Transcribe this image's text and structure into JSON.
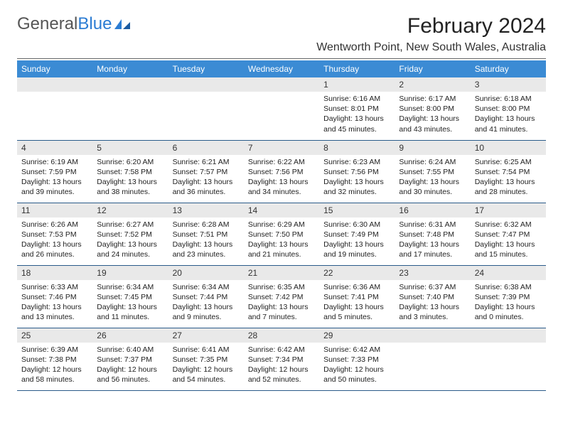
{
  "brand": {
    "part1": "General",
    "part2": "Blue"
  },
  "title": "February 2024",
  "location": "Wentworth Point, New South Wales, Australia",
  "colors": {
    "header_bg": "#3b8bd4",
    "header_text": "#ffffff",
    "daynum_bg": "#e9e9e9",
    "row_border": "#2a5b8a",
    "brand_blue": "#2b7cd3"
  },
  "days_of_week": [
    "Sunday",
    "Monday",
    "Tuesday",
    "Wednesday",
    "Thursday",
    "Friday",
    "Saturday"
  ],
  "weeks": [
    [
      {
        "blank": true
      },
      {
        "blank": true
      },
      {
        "blank": true
      },
      {
        "blank": true
      },
      {
        "n": "1",
        "sr": "Sunrise: 6:16 AM",
        "ss": "Sunset: 8:01 PM",
        "dl": "Daylight: 13 hours and 45 minutes."
      },
      {
        "n": "2",
        "sr": "Sunrise: 6:17 AM",
        "ss": "Sunset: 8:00 PM",
        "dl": "Daylight: 13 hours and 43 minutes."
      },
      {
        "n": "3",
        "sr": "Sunrise: 6:18 AM",
        "ss": "Sunset: 8:00 PM",
        "dl": "Daylight: 13 hours and 41 minutes."
      }
    ],
    [
      {
        "n": "4",
        "sr": "Sunrise: 6:19 AM",
        "ss": "Sunset: 7:59 PM",
        "dl": "Daylight: 13 hours and 39 minutes."
      },
      {
        "n": "5",
        "sr": "Sunrise: 6:20 AM",
        "ss": "Sunset: 7:58 PM",
        "dl": "Daylight: 13 hours and 38 minutes."
      },
      {
        "n": "6",
        "sr": "Sunrise: 6:21 AM",
        "ss": "Sunset: 7:57 PM",
        "dl": "Daylight: 13 hours and 36 minutes."
      },
      {
        "n": "7",
        "sr": "Sunrise: 6:22 AM",
        "ss": "Sunset: 7:56 PM",
        "dl": "Daylight: 13 hours and 34 minutes."
      },
      {
        "n": "8",
        "sr": "Sunrise: 6:23 AM",
        "ss": "Sunset: 7:56 PM",
        "dl": "Daylight: 13 hours and 32 minutes."
      },
      {
        "n": "9",
        "sr": "Sunrise: 6:24 AM",
        "ss": "Sunset: 7:55 PM",
        "dl": "Daylight: 13 hours and 30 minutes."
      },
      {
        "n": "10",
        "sr": "Sunrise: 6:25 AM",
        "ss": "Sunset: 7:54 PM",
        "dl": "Daylight: 13 hours and 28 minutes."
      }
    ],
    [
      {
        "n": "11",
        "sr": "Sunrise: 6:26 AM",
        "ss": "Sunset: 7:53 PM",
        "dl": "Daylight: 13 hours and 26 minutes."
      },
      {
        "n": "12",
        "sr": "Sunrise: 6:27 AM",
        "ss": "Sunset: 7:52 PM",
        "dl": "Daylight: 13 hours and 24 minutes."
      },
      {
        "n": "13",
        "sr": "Sunrise: 6:28 AM",
        "ss": "Sunset: 7:51 PM",
        "dl": "Daylight: 13 hours and 23 minutes."
      },
      {
        "n": "14",
        "sr": "Sunrise: 6:29 AM",
        "ss": "Sunset: 7:50 PM",
        "dl": "Daylight: 13 hours and 21 minutes."
      },
      {
        "n": "15",
        "sr": "Sunrise: 6:30 AM",
        "ss": "Sunset: 7:49 PM",
        "dl": "Daylight: 13 hours and 19 minutes."
      },
      {
        "n": "16",
        "sr": "Sunrise: 6:31 AM",
        "ss": "Sunset: 7:48 PM",
        "dl": "Daylight: 13 hours and 17 minutes."
      },
      {
        "n": "17",
        "sr": "Sunrise: 6:32 AM",
        "ss": "Sunset: 7:47 PM",
        "dl": "Daylight: 13 hours and 15 minutes."
      }
    ],
    [
      {
        "n": "18",
        "sr": "Sunrise: 6:33 AM",
        "ss": "Sunset: 7:46 PM",
        "dl": "Daylight: 13 hours and 13 minutes."
      },
      {
        "n": "19",
        "sr": "Sunrise: 6:34 AM",
        "ss": "Sunset: 7:45 PM",
        "dl": "Daylight: 13 hours and 11 minutes."
      },
      {
        "n": "20",
        "sr": "Sunrise: 6:34 AM",
        "ss": "Sunset: 7:44 PM",
        "dl": "Daylight: 13 hours and 9 minutes."
      },
      {
        "n": "21",
        "sr": "Sunrise: 6:35 AM",
        "ss": "Sunset: 7:42 PM",
        "dl": "Daylight: 13 hours and 7 minutes."
      },
      {
        "n": "22",
        "sr": "Sunrise: 6:36 AM",
        "ss": "Sunset: 7:41 PM",
        "dl": "Daylight: 13 hours and 5 minutes."
      },
      {
        "n": "23",
        "sr": "Sunrise: 6:37 AM",
        "ss": "Sunset: 7:40 PM",
        "dl": "Daylight: 13 hours and 3 minutes."
      },
      {
        "n": "24",
        "sr": "Sunrise: 6:38 AM",
        "ss": "Sunset: 7:39 PM",
        "dl": "Daylight: 13 hours and 0 minutes."
      }
    ],
    [
      {
        "n": "25",
        "sr": "Sunrise: 6:39 AM",
        "ss": "Sunset: 7:38 PM",
        "dl": "Daylight: 12 hours and 58 minutes."
      },
      {
        "n": "26",
        "sr": "Sunrise: 6:40 AM",
        "ss": "Sunset: 7:37 PM",
        "dl": "Daylight: 12 hours and 56 minutes."
      },
      {
        "n": "27",
        "sr": "Sunrise: 6:41 AM",
        "ss": "Sunset: 7:35 PM",
        "dl": "Daylight: 12 hours and 54 minutes."
      },
      {
        "n": "28",
        "sr": "Sunrise: 6:42 AM",
        "ss": "Sunset: 7:34 PM",
        "dl": "Daylight: 12 hours and 52 minutes."
      },
      {
        "n": "29",
        "sr": "Sunrise: 6:42 AM",
        "ss": "Sunset: 7:33 PM",
        "dl": "Daylight: 12 hours and 50 minutes."
      },
      {
        "blank": true
      },
      {
        "blank": true
      }
    ]
  ]
}
